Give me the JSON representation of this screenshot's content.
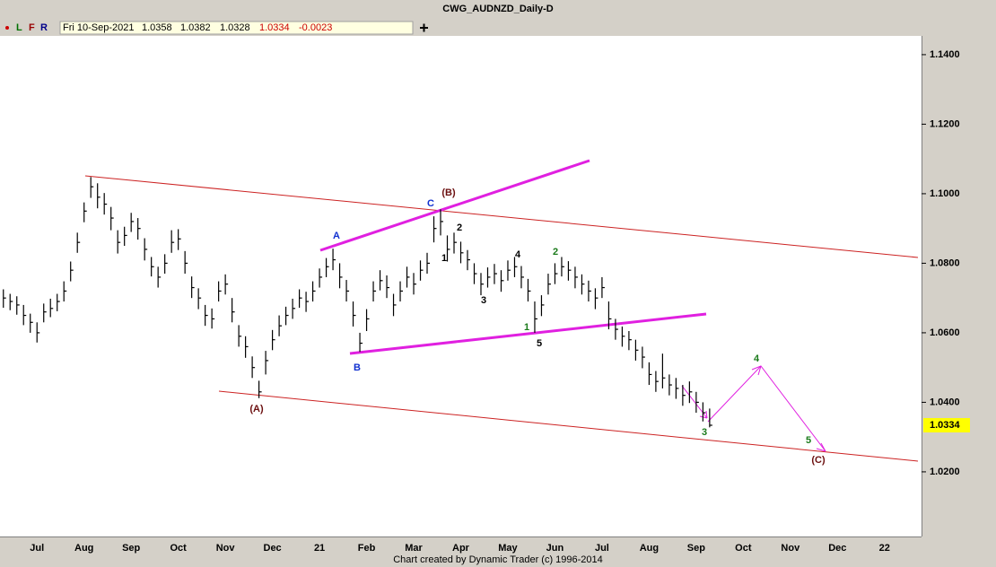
{
  "header": {
    "title": "CWG_AUDNZD_Daily-D",
    "buttons": [
      "L",
      "F",
      "R"
    ],
    "date": "Fri 10-Sep-2021",
    "open": 1.0358,
    "high": 1.0382,
    "low": 1.0328,
    "change": -0.0023
  },
  "footer": "Chart created by Dynamic Trader  (c) 1996-2014",
  "wave_labels": [
    "(A)",
    "A",
    "B",
    "C",
    "(B)",
    "1",
    "2",
    "3",
    "4",
    "5",
    "1",
    "2",
    "3",
    "4",
    "5",
    "(C)"
  ],
  "chart_data": {
    "type": "hlc",
    "categories": [
      null,
      null,
      null,
      null,
      null,
      "Jul",
      null,
      null,
      null,
      null,
      null,
      null,
      "Aug",
      null,
      null,
      null,
      null,
      null,
      null,
      "Sep",
      null,
      null,
      null,
      null,
      null,
      null,
      "Oct",
      null,
      null,
      null,
      null,
      null,
      null,
      "Nov",
      null,
      null,
      null,
      null,
      null,
      null,
      "Dec",
      null,
      null,
      null,
      null,
      null,
      null,
      "21",
      null,
      null,
      null,
      null,
      null,
      null,
      "Feb",
      null,
      null,
      null,
      null,
      null,
      null,
      "Mar",
      null,
      null,
      null,
      null,
      null,
      null,
      "Apr",
      null,
      null,
      null,
      null,
      null,
      null,
      "May",
      null,
      null,
      null,
      null,
      null,
      null,
      "Jun",
      null,
      null,
      null,
      null,
      null,
      null,
      "Jul",
      null,
      null,
      null,
      null,
      null,
      null,
      "Aug",
      null,
      null,
      null,
      null,
      null,
      null,
      "Sep",
      null,
      null,
      null,
      null,
      null,
      null,
      "Oct",
      null,
      null,
      null,
      null,
      null,
      null,
      "Nov",
      null,
      null,
      null,
      null,
      null,
      null,
      "Dec",
      null,
      null,
      null,
      null,
      null,
      null,
      "22",
      null,
      null,
      null,
      null,
      null
    ],
    "high": [
      1.0725,
      1.0712,
      1.0705,
      1.068,
      1.0655,
      1.063,
      1.0684,
      1.0698,
      1.0712,
      1.0748,
      1.0805,
      1.0888,
      1.0975,
      1.1048,
      1.103,
      1.1002,
      1.0962,
      1.0895,
      1.0905,
      1.0945,
      1.093,
      1.0872,
      1.0818,
      1.079,
      1.0826,
      1.0895,
      1.0898,
      1.0835,
      1.0762,
      1.0728,
      1.068,
      1.067,
      1.0748,
      1.0768,
      1.07,
      1.0622,
      1.059,
      1.0532,
      1.0462,
      1.0548,
      1.0608,
      1.065,
      1.0675,
      1.0698,
      1.0725,
      1.0718,
      1.0748,
      1.0785,
      1.0815,
      1.0842,
      1.08,
      1.0752,
      1.069,
      1.06,
      1.0668,
      1.0748,
      1.078,
      1.0765,
      1.0712,
      1.0748,
      1.079,
      1.0772,
      1.0808,
      1.083,
      1.0935,
      1.0955,
      1.088,
      1.0888,
      1.0862,
      1.0838,
      1.08,
      1.0772,
      1.0788,
      1.0798,
      1.078,
      1.0808,
      1.0818,
      1.0792,
      1.0755,
      1.069,
      1.0708,
      1.077,
      1.08,
      1.0818,
      1.0806,
      1.079,
      1.0768,
      1.075,
      1.0728,
      1.076,
      1.069,
      1.064,
      1.0618,
      1.0605,
      1.058,
      1.056,
      1.0515,
      1.049,
      1.054,
      1.048,
      1.047,
      1.045,
      1.046,
      1.043,
      1.04,
      1.0382,
      null,
      null,
      null,
      null,
      null,
      null,
      null,
      null,
      null,
      null,
      null,
      null,
      null,
      null,
      null,
      null,
      null,
      null,
      null,
      null,
      null,
      null,
      null,
      null,
      null,
      null,
      null,
      null,
      null,
      null,
      null
    ],
    "low": [
      1.0672,
      1.0665,
      1.0652,
      1.0622,
      1.06,
      1.0572,
      1.063,
      1.0645,
      1.0662,
      1.069,
      1.0748,
      1.083,
      1.0918,
      1.0988,
      1.0958,
      1.094,
      1.0895,
      1.0828,
      1.085,
      1.089,
      1.0868,
      1.0808,
      1.0762,
      1.073,
      1.077,
      1.083,
      1.0838,
      1.077,
      1.07,
      1.0668,
      1.062,
      1.0612,
      1.069,
      1.071,
      1.063,
      1.056,
      1.0528,
      1.047,
      1.0412,
      1.048,
      1.055,
      1.059,
      1.0622,
      1.064,
      1.0672,
      1.066,
      1.069,
      1.073,
      1.076,
      1.078,
      1.0728,
      1.069,
      1.0618,
      1.0545,
      1.0605,
      1.069,
      1.0722,
      1.07,
      1.0648,
      1.069,
      1.073,
      1.071,
      1.075,
      1.077,
      1.086,
      1.088,
      1.0805,
      1.0828,
      1.08,
      1.078,
      1.074,
      1.0708,
      1.073,
      1.074,
      1.0718,
      1.075,
      1.076,
      1.0728,
      1.069,
      1.06,
      1.0648,
      1.071,
      1.074,
      1.0762,
      1.075,
      1.0728,
      1.071,
      1.069,
      1.0668,
      1.07,
      1.061,
      1.058,
      1.056,
      1.055,
      1.052,
      1.0498,
      1.045,
      1.043,
      1.044,
      1.042,
      1.041,
      1.039,
      1.0398,
      1.037,
      1.0345,
      1.0328,
      null,
      null,
      null,
      null,
      null,
      null,
      null,
      null,
      null,
      null,
      null,
      null,
      null,
      null,
      null,
      null,
      null,
      null,
      null,
      null,
      null,
      null,
      null,
      null,
      null,
      null,
      null,
      null,
      null,
      null,
      null
    ],
    "close": [
      1.07,
      1.069,
      1.068,
      1.065,
      1.063,
      1.06,
      1.066,
      1.067,
      1.069,
      1.072,
      1.078,
      1.086,
      1.095,
      1.102,
      1.099,
      1.097,
      1.093,
      1.086,
      1.088,
      1.092,
      1.09,
      1.084,
      1.079,
      1.076,
      1.08,
      1.086,
      1.087,
      1.08,
      1.073,
      1.07,
      1.065,
      1.064,
      1.072,
      1.074,
      1.066,
      1.059,
      1.056,
      1.05,
      1.043,
      1.052,
      1.058,
      1.062,
      1.065,
      1.067,
      1.07,
      1.069,
      1.072,
      1.076,
      1.079,
      1.081,
      1.076,
      1.072,
      1.065,
      1.057,
      1.064,
      1.072,
      1.075,
      1.073,
      1.068,
      1.072,
      1.076,
      1.074,
      1.078,
      1.08,
      1.09,
      1.092,
      1.084,
      1.086,
      1.083,
      1.081,
      1.077,
      1.074,
      1.076,
      1.077,
      1.075,
      1.078,
      1.079,
      1.076,
      1.072,
      1.064,
      1.068,
      1.074,
      1.077,
      1.079,
      1.078,
      1.076,
      1.074,
      1.072,
      1.07,
      1.073,
      1.064,
      1.061,
      1.059,
      1.058,
      1.055,
      1.053,
      1.048,
      1.046,
      1.047,
      1.045,
      1.044,
      1.042,
      1.043,
      1.04,
      1.037,
      1.0334,
      null,
      null,
      null,
      null,
      null,
      null,
      null,
      null,
      null,
      null,
      null,
      null,
      null,
      null,
      null,
      null,
      null,
      null,
      null,
      null,
      null,
      null,
      null,
      null,
      null,
      null,
      null,
      null,
      null,
      null,
      null
    ],
    "color": "#000000",
    "ylim": [
      1.0014,
      1.1454
    ],
    "yticks": [
      {
        "value": 1.02,
        "label": "1.0200"
      },
      {
        "value": 1.04,
        "label": "1.0400"
      },
      {
        "value": 1.06,
        "label": "1.0600"
      },
      {
        "value": 1.08,
        "label": "1.0800"
      },
      {
        "value": 1.1,
        "label": "1.1000"
      },
      {
        "value": 1.12,
        "label": "1.1200"
      },
      {
        "value": 1.14,
        "label": "1.1400"
      }
    ],
    "grid": false
  }
}
